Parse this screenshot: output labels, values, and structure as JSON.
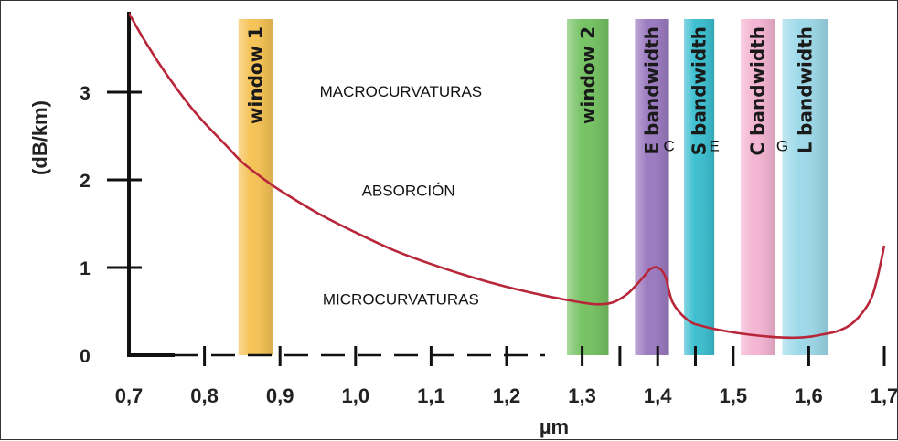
{
  "chart_data": {
    "type": "line",
    "xlabel": "µm",
    "ylabel": "(dB/km)",
    "xlim": [
      0.7,
      1.7
    ],
    "ylim": [
      0,
      3.8
    ],
    "x_ticks": [
      {
        "value": 0.7,
        "label": "0,7"
      },
      {
        "value": 0.8,
        "label": "0,8"
      },
      {
        "value": 0.9,
        "label": "0,9"
      },
      {
        "value": 1.0,
        "label": "1,0"
      },
      {
        "value": 1.1,
        "label": "1,1"
      },
      {
        "value": 1.2,
        "label": "1,2"
      },
      {
        "value": 1.3,
        "label": "1,3"
      },
      {
        "value": 1.35,
        "label": ""
      },
      {
        "value": 1.4,
        "label": "1,4"
      },
      {
        "value": 1.45,
        "label": ""
      },
      {
        "value": 1.5,
        "label": "1,5"
      },
      {
        "value": 1.6,
        "label": "1,6"
      },
      {
        "value": 1.7,
        "label": "1,7"
      }
    ],
    "y_ticks": [
      {
        "value": 0,
        "label": "0"
      },
      {
        "value": 1,
        "label": "1"
      },
      {
        "value": 2,
        "label": "2"
      },
      {
        "value": 3,
        "label": "3"
      }
    ],
    "series": [
      {
        "color": "#b8263a",
        "x": [
          0.7,
          0.72,
          0.75,
          0.78,
          0.8,
          0.83,
          0.85,
          0.88,
          0.9,
          0.95,
          1.0,
          1.05,
          1.1,
          1.15,
          1.2,
          1.25,
          1.28,
          1.3,
          1.32,
          1.34,
          1.36,
          1.38,
          1.39,
          1.4,
          1.41,
          1.42,
          1.44,
          1.46,
          1.5,
          1.55,
          1.58,
          1.6,
          1.62,
          1.64,
          1.66,
          1.68,
          1.69,
          1.7
        ],
        "y": [
          3.9,
          3.6,
          3.2,
          2.85,
          2.65,
          2.38,
          2.2,
          2.0,
          1.88,
          1.62,
          1.4,
          1.2,
          1.04,
          0.9,
          0.78,
          0.68,
          0.63,
          0.6,
          0.58,
          0.6,
          0.7,
          0.88,
          0.98,
          1.0,
          0.9,
          0.6,
          0.4,
          0.33,
          0.26,
          0.21,
          0.2,
          0.21,
          0.24,
          0.28,
          0.38,
          0.6,
          0.85,
          1.25
        ]
      }
    ],
    "bands": [
      {
        "label": "window 1",
        "x_range": [
          0.845,
          0.89
        ],
        "color": "#f5b83a"
      },
      {
        "label": "window 2",
        "x_range": [
          1.28,
          1.335
        ],
        "color": "#5fb94a"
      },
      {
        "label": "E bandwidth",
        "x_range": [
          1.37,
          1.415
        ],
        "color": "#8b64b5"
      },
      {
        "label": "S bandwidth",
        "x_range": [
          1.435,
          1.475
        ],
        "color": "#1cb4c8"
      },
      {
        "label": "C bandwidth",
        "x_range": [
          1.51,
          1.555
        ],
        "color": "#f2a8cb"
      },
      {
        "label": "L bandwidth",
        "x_range": [
          1.565,
          1.625
        ],
        "color": "#8ed4e6"
      }
    ],
    "annotations": [
      {
        "text": "MACROCURVATURAS",
        "x": 1.06,
        "y": 2.95
      },
      {
        "text": "ABSORCIÓN",
        "x": 1.07,
        "y": 1.82
      },
      {
        "text": "MICROCURVATURAS",
        "x": 1.06,
        "y": 0.58
      },
      {
        "text": "C",
        "x": 1.415,
        "y": 2.33
      },
      {
        "text": "E",
        "x": 1.475,
        "y": 2.33
      },
      {
        "text": "G",
        "x": 1.565,
        "y": 2.33
      }
    ],
    "grid": false,
    "legend": "none"
  }
}
